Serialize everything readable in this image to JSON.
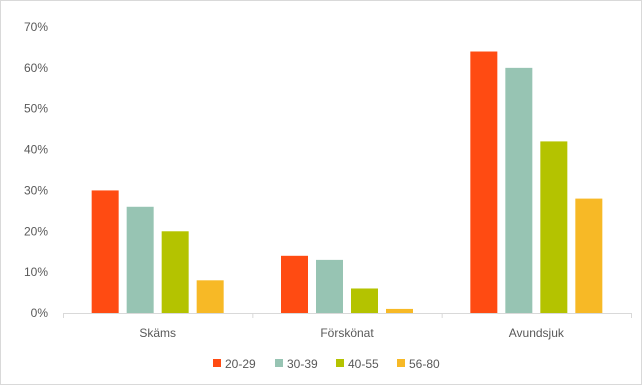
{
  "chart_data": {
    "type": "bar",
    "categories": [
      "Skäms",
      "Förskönat",
      "Avundsjuk"
    ],
    "series": [
      {
        "name": "20-29",
        "color": "#ff4b12",
        "values": [
          30,
          14,
          64
        ]
      },
      {
        "name": "30-39",
        "color": "#97c4b3",
        "values": [
          26,
          13,
          60
        ]
      },
      {
        "name": "40-55",
        "color": "#b4c300",
        "values": [
          20,
          6,
          42
        ]
      },
      {
        "name": "56-80",
        "color": "#f7b926",
        "values": [
          8,
          1,
          28
        ]
      }
    ],
    "y_ticks": [
      "0%",
      "10%",
      "20%",
      "30%",
      "40%",
      "50%",
      "60%",
      "70%"
    ],
    "ylim": [
      0,
      70
    ],
    "value_unit": "%",
    "grid": false,
    "legend_position": "bottom",
    "axis_color": "#d9d9d9",
    "text_color": "#595959"
  }
}
